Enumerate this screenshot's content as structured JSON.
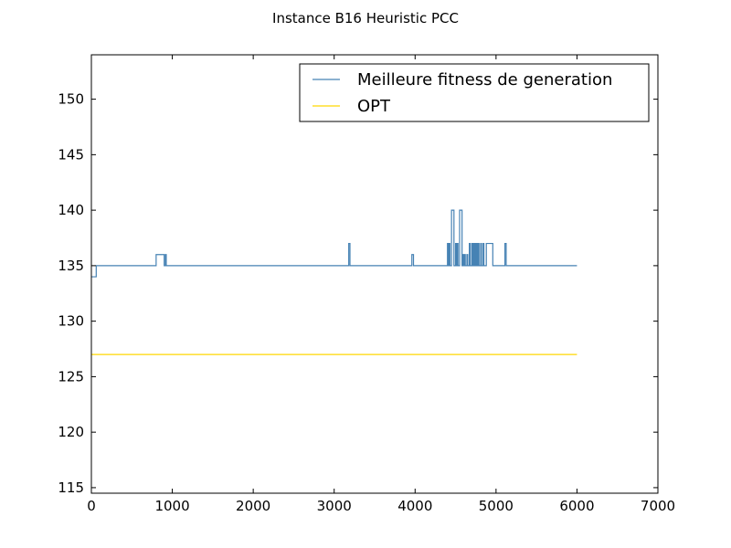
{
  "chart_data": {
    "type": "line",
    "title": "Instance B16 Heuristic PCC",
    "xlabel": "",
    "ylabel": "",
    "xlim": [
      0,
      7000
    ],
    "ylim": [
      114.5,
      154
    ],
    "xticks": [
      0,
      1000,
      2000,
      3000,
      4000,
      5000,
      6000,
      7000
    ],
    "yticks": [
      115,
      120,
      125,
      130,
      135,
      140,
      145,
      150
    ],
    "grid": false,
    "legend_position": "top-right",
    "series": [
      {
        "name": "Meilleure fitness de generation",
        "color": "#4682b4",
        "step": true,
        "points": [
          [
            0,
            134
          ],
          [
            60,
            135
          ],
          [
            800,
            136
          ],
          [
            900,
            135
          ],
          [
            915,
            136
          ],
          [
            925,
            135
          ],
          [
            3180,
            137
          ],
          [
            3195,
            135
          ],
          [
            3960,
            136
          ],
          [
            3980,
            135
          ],
          [
            4400,
            137
          ],
          [
            4410,
            135
          ],
          [
            4420,
            137
          ],
          [
            4430,
            135
          ],
          [
            4450,
            140
          ],
          [
            4480,
            135
          ],
          [
            4500,
            137
          ],
          [
            4510,
            135
          ],
          [
            4520,
            137
          ],
          [
            4530,
            135
          ],
          [
            4550,
            140
          ],
          [
            4580,
            135
          ],
          [
            4590,
            136
          ],
          [
            4600,
            135
          ],
          [
            4610,
            136
          ],
          [
            4620,
            135
          ],
          [
            4640,
            136
          ],
          [
            4650,
            135
          ],
          [
            4670,
            137
          ],
          [
            4680,
            135
          ],
          [
            4700,
            137
          ],
          [
            4710,
            135
          ],
          [
            4720,
            137
          ],
          [
            4730,
            135
          ],
          [
            4740,
            137
          ],
          [
            4750,
            135
          ],
          [
            4760,
            137
          ],
          [
            4770,
            135
          ],
          [
            4780,
            137
          ],
          [
            4790,
            135
          ],
          [
            4810,
            137
          ],
          [
            4820,
            135
          ],
          [
            4840,
            137
          ],
          [
            4850,
            135
          ],
          [
            4880,
            137
          ],
          [
            4960,
            135
          ],
          [
            5110,
            137
          ],
          [
            5125,
            135
          ],
          [
            6000,
            135
          ]
        ]
      },
      {
        "name": "OPT",
        "color": "#ffd700",
        "step": false,
        "points": [
          [
            0,
            127
          ],
          [
            6000,
            127
          ]
        ]
      }
    ]
  }
}
